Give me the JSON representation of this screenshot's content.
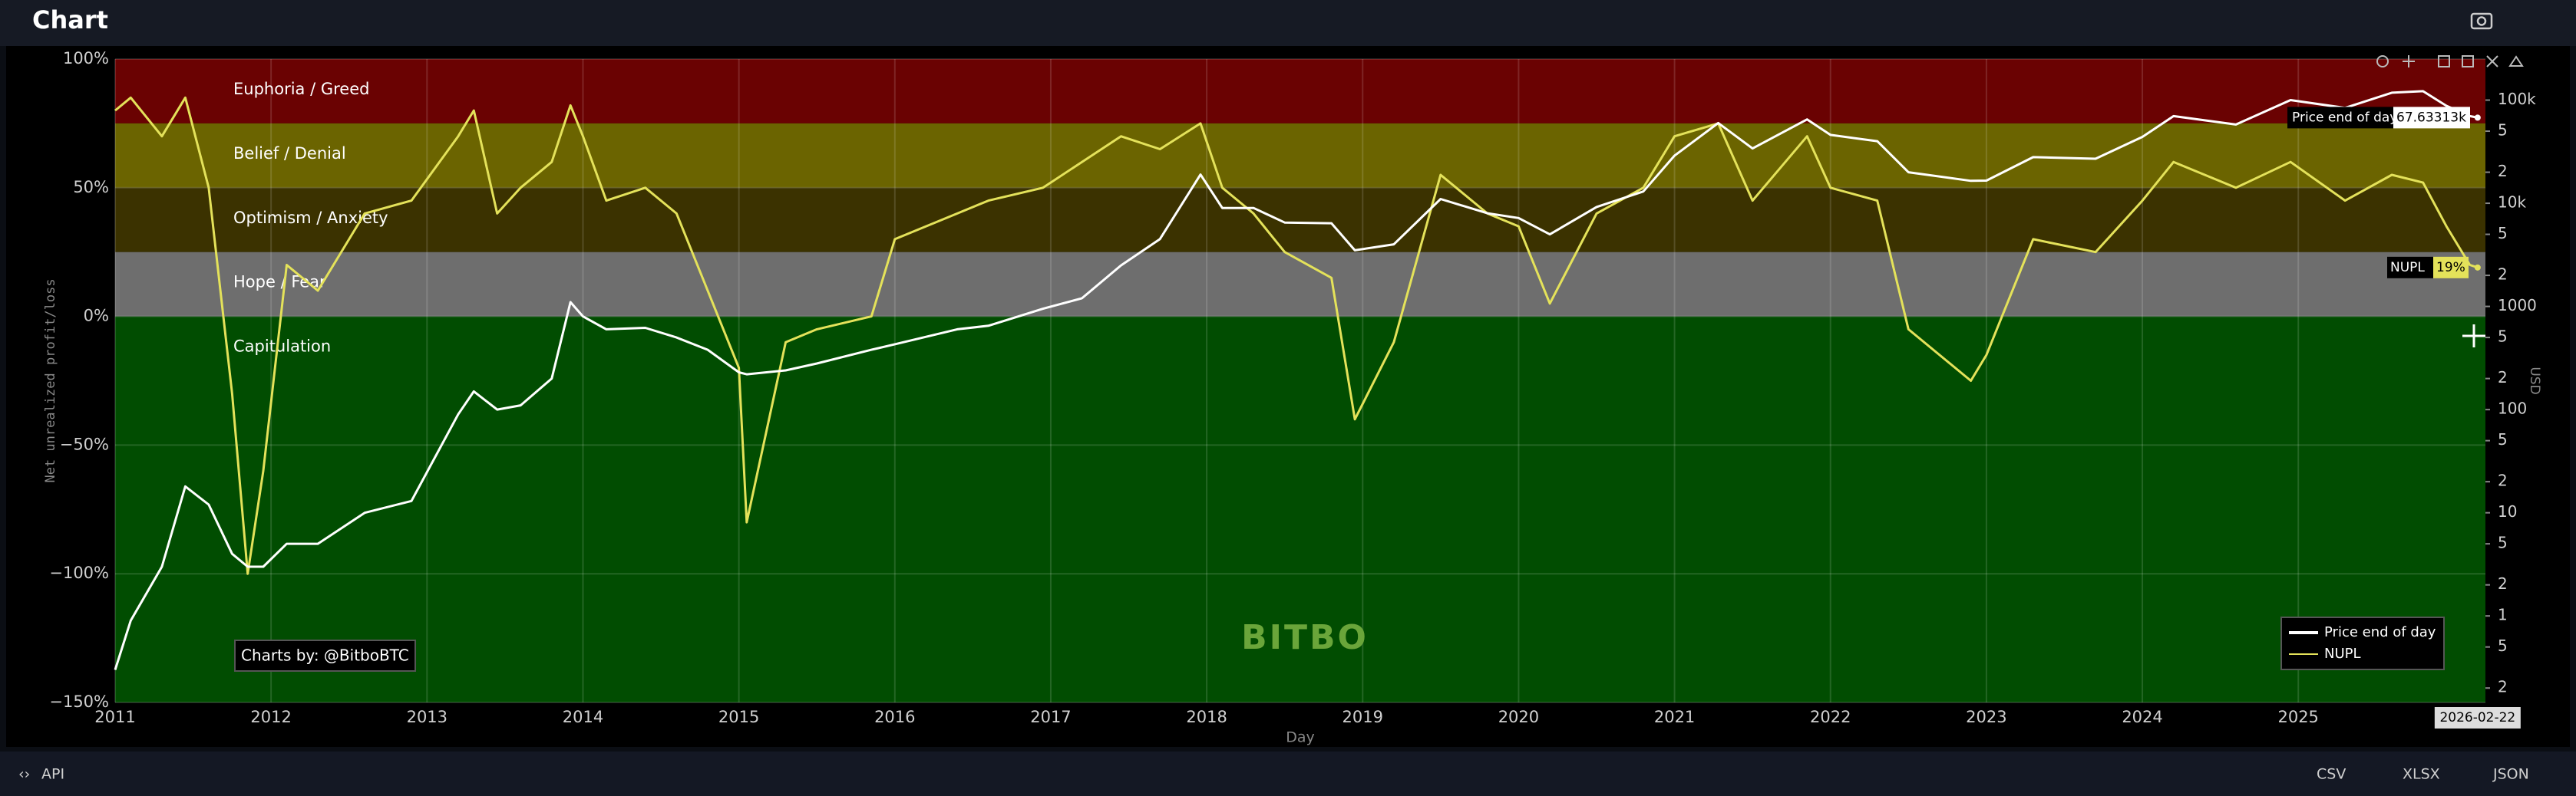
{
  "header": {
    "title": "Chart"
  },
  "footer": {
    "api": "API",
    "buttons": [
      "CSV",
      "XLSX",
      "JSON"
    ]
  },
  "chart_data": {
    "type": "line",
    "y_label": "Net unrealized profit/loss",
    "x_label": "Day",
    "y2_label": "USD",
    "credit": "Charts by: @BitboBTC",
    "watermark": "BITBO",
    "xlim": [
      2011,
      2026.2
    ],
    "xticks": [
      2011,
      2012,
      2013,
      2014,
      2015,
      2016,
      2017,
      2018,
      2019,
      2020,
      2021,
      2022,
      2023,
      2024,
      2025
    ],
    "ylim": [
      -150,
      100
    ],
    "yticks": [
      {
        "value": -150,
        "label": "−150%"
      },
      {
        "value": -100,
        "label": "−100%"
      },
      {
        "value": -50,
        "label": "−50%"
      },
      {
        "value": 0,
        "label": "0%"
      },
      {
        "value": 50,
        "label": "50%"
      },
      {
        "value": 100,
        "label": "100%"
      }
    ],
    "y2log": true,
    "y2lim": [
      0.145,
      250000
    ],
    "y2ticks": [
      {
        "value": 100000,
        "label": "100k"
      },
      {
        "value": 50000,
        "label": "5"
      },
      {
        "value": 20000,
        "label": "2"
      },
      {
        "value": 10000,
        "label": "10k"
      },
      {
        "value": 5000,
        "label": "5"
      },
      {
        "value": 2000,
        "label": "2"
      },
      1000,
      {
        "value": 500,
        "label": "5"
      },
      {
        "value": 200,
        "label": "2"
      },
      100,
      {
        "value": 50,
        "label": "5"
      },
      {
        "value": 20,
        "label": "2"
      },
      10,
      {
        "value": 5,
        "label": "5"
      },
      {
        "value": 2,
        "label": "2"
      },
      1,
      {
        "value": 0.5,
        "label": "5"
      },
      {
        "value": 0.2,
        "label": "2"
      }
    ],
    "grid": true,
    "legend": "bottom-right",
    "zones": [
      {
        "name": "Euphoria / Greed",
        "from": 75,
        "to": 100,
        "color": "#6a0202"
      },
      {
        "name": "Belief / Denial",
        "from": 50,
        "to": 75,
        "color": "#6b6400"
      },
      {
        "name": "Optimism / Anxiety",
        "from": 25,
        "to": 50,
        "color": "#3b3200"
      },
      {
        "name": "Hope / Fear",
        "from": 0,
        "to": 25,
        "color": "#6e6e6e"
      },
      {
        "name": "Capitulation",
        "from": -150,
        "to": 0,
        "color": "#014d01"
      }
    ],
    "x": [
      2011.0,
      2011.1,
      2011.3,
      2011.45,
      2011.6,
      2011.75,
      2011.85,
      2011.95,
      2012.1,
      2012.3,
      2012.6,
      2012.9,
      2013.2,
      2013.3,
      2013.45,
      2013.6,
      2013.8,
      2013.92,
      2014.0,
      2014.15,
      2014.4,
      2014.6,
      2014.8,
      2015.0,
      2015.05,
      2015.3,
      2015.5,
      2015.85,
      2016.0,
      2016.4,
      2016.6,
      2016.95,
      2017.2,
      2017.45,
      2017.7,
      2017.96,
      2018.1,
      2018.3,
      2018.5,
      2018.8,
      2018.95,
      2019.2,
      2019.5,
      2019.8,
      2020.0,
      2020.2,
      2020.5,
      2020.8,
      2021.0,
      2021.28,
      2021.5,
      2021.85,
      2022.0,
      2022.3,
      2022.5,
      2022.9,
      2023.0,
      2023.3,
      2023.7,
      2024.0,
      2024.2,
      2024.6,
      2024.95,
      2025.3,
      2025.6,
      2025.8,
      2025.95,
      2026.1,
      2026.15
    ],
    "series": [
      {
        "name": "Price end of day",
        "color": "#ffffff",
        "axis": "y2",
        "values": [
          0.3,
          0.9,
          3,
          18,
          12,
          4,
          3,
          3,
          5,
          5,
          10,
          13,
          90,
          150,
          100,
          110,
          200,
          1100,
          800,
          600,
          620,
          500,
          380,
          230,
          220,
          240,
          280,
          380,
          430,
          600,
          650,
          950,
          1200,
          2500,
          4500,
          19000,
          9000,
          9000,
          6500,
          6400,
          3500,
          4000,
          11000,
          8000,
          7200,
          5000,
          9200,
          13000,
          29000,
          60000,
          34000,
          65000,
          46000,
          40000,
          20000,
          16500,
          16600,
          28000,
          27000,
          44000,
          70000,
          58000,
          100000,
          84000,
          118000,
          122000,
          88000,
          70000,
          67633.13
        ]
      },
      {
        "name": "NUPL",
        "color": "#e4e25a",
        "values": [
          80,
          85,
          70,
          85,
          50,
          -30,
          -100,
          -60,
          20,
          10,
          40,
          45,
          70,
          80,
          40,
          50,
          60,
          82,
          70,
          45,
          50,
          40,
          10,
          -20,
          -80,
          -10,
          -5,
          0,
          30,
          40,
          45,
          50,
          60,
          70,
          65,
          75,
          50,
          40,
          25,
          15,
          -40,
          -10,
          55,
          40,
          35,
          5,
          40,
          50,
          70,
          75,
          45,
          70,
          50,
          45,
          -5,
          -25,
          -15,
          30,
          25,
          45,
          60,
          50,
          60,
          45,
          55,
          52,
          35,
          20,
          19
        ]
      }
    ],
    "hover": {
      "x": 2026.15,
      "date": "2026-02-22",
      "price": 67633.13,
      "price_label": "67.63313k",
      "nupl": 19,
      "nupl_label": "19%"
    }
  }
}
